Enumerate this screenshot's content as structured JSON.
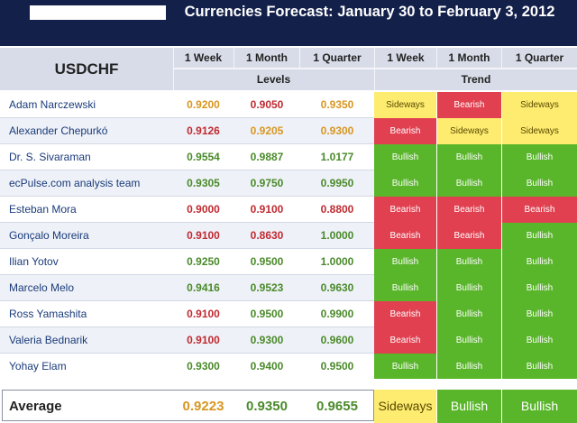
{
  "header": {
    "title": "Currencies Forecast: January 30 to February 3, 2012"
  },
  "table": {
    "pair": "USDCHF",
    "level_columns": [
      "1 Week",
      "1 Month",
      "1 Quarter"
    ],
    "trend_columns": [
      "1 Week",
      "1 Month",
      "1 Quarter"
    ],
    "levels_label": "Levels",
    "trend_label": "Trend",
    "colors": {
      "up": "#4a8a2a",
      "down": "#c02a30",
      "flat": "#d89620",
      "sideways": "#fdec70",
      "bearish": "#e04050",
      "bullish": "#59b52a"
    },
    "rows": [
      {
        "name": "Adam Narczewski",
        "levels": [
          "0.9200",
          "0.9050",
          "0.9350"
        ],
        "level_tone": [
          "flat",
          "down",
          "flat"
        ],
        "trends": [
          "Sideways",
          "Bearish",
          "Sideways"
        ]
      },
      {
        "name": "Alexander Chepurkó",
        "levels": [
          "0.9126",
          "0.9205",
          "0.9300"
        ],
        "level_tone": [
          "down",
          "flat",
          "flat"
        ],
        "trends": [
          "Bearish",
          "Sideways",
          "Sideways"
        ]
      },
      {
        "name": "Dr. S. Sivaraman",
        "levels": [
          "0.9554",
          "0.9887",
          "1.0177"
        ],
        "level_tone": [
          "up",
          "up",
          "up"
        ],
        "trends": [
          "Bullish",
          "Bullish",
          "Bullish"
        ]
      },
      {
        "name": "ecPulse.com analysis team",
        "levels": [
          "0.9305",
          "0.9750",
          "0.9950"
        ],
        "level_tone": [
          "up",
          "up",
          "up"
        ],
        "trends": [
          "Bullish",
          "Bullish",
          "Bullish"
        ]
      },
      {
        "name": "Esteban Mora",
        "levels": [
          "0.9000",
          "0.9100",
          "0.8800"
        ],
        "level_tone": [
          "down",
          "down",
          "down"
        ],
        "trends": [
          "Bearish",
          "Bearish",
          "Bearish"
        ]
      },
      {
        "name": "Gonçalo Moreira",
        "levels": [
          "0.9100",
          "0.8630",
          "1.0000"
        ],
        "level_tone": [
          "down",
          "down",
          "up"
        ],
        "trends": [
          "Bearish",
          "Bearish",
          "Bullish"
        ]
      },
      {
        "name": "Ilian Yotov",
        "levels": [
          "0.9250",
          "0.9500",
          "1.0000"
        ],
        "level_tone": [
          "up",
          "up",
          "up"
        ],
        "trends": [
          "Bullish",
          "Bullish",
          "Bullish"
        ]
      },
      {
        "name": "Marcelo Melo",
        "levels": [
          "0.9416",
          "0.9523",
          "0.9630"
        ],
        "level_tone": [
          "up",
          "up",
          "up"
        ],
        "trends": [
          "Bullish",
          "Bullish",
          "Bullish"
        ]
      },
      {
        "name": "Ross Yamashita",
        "levels": [
          "0.9100",
          "0.9500",
          "0.9900"
        ],
        "level_tone": [
          "down",
          "up",
          "up"
        ],
        "trends": [
          "Bearish",
          "Bullish",
          "Bullish"
        ]
      },
      {
        "name": "Valeria Bednarik",
        "levels": [
          "0.9100",
          "0.9300",
          "0.9600"
        ],
        "level_tone": [
          "down",
          "up",
          "up"
        ],
        "trends": [
          "Bearish",
          "Bullish",
          "Bullish"
        ]
      },
      {
        "name": "Yohay Elam",
        "levels": [
          "0.9300",
          "0.9400",
          "0.9500"
        ],
        "level_tone": [
          "up",
          "up",
          "up"
        ],
        "trends": [
          "Bullish",
          "Bullish",
          "Bullish"
        ]
      }
    ],
    "average": {
      "label": "Average",
      "levels": [
        "0.9223",
        "0.9350",
        "0.9655"
      ],
      "level_tone": [
        "flat",
        "up",
        "up"
      ],
      "trends": [
        "Sideways",
        "Bullish",
        "Bullish"
      ]
    }
  }
}
